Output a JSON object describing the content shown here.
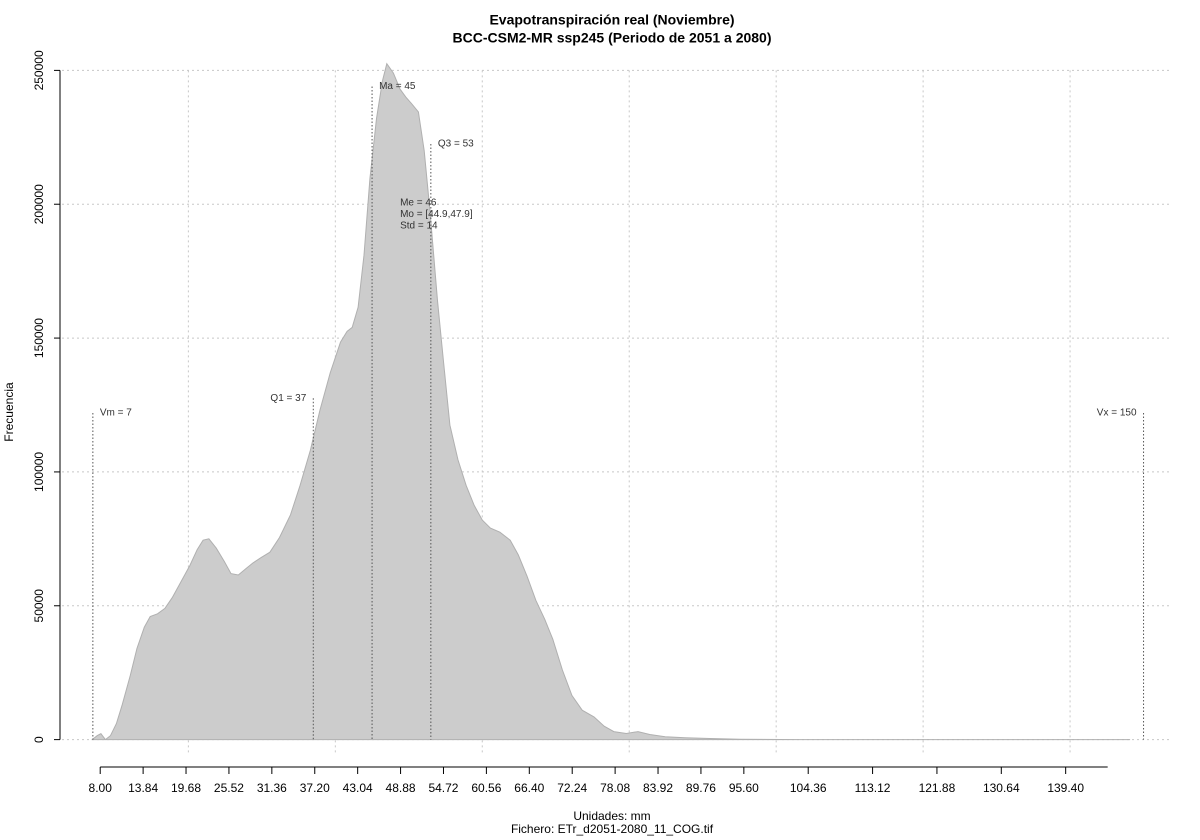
{
  "chart_data": {
    "type": "area",
    "title": "Evapotranspiración real (Noviembre)",
    "subtitle": "BCC-CSM2-MR ssp245 (Periodo de 2051 a 2080)",
    "xlabel": "Unidades: mm",
    "caption": "Fichero: ETr_d2051-2080_11_COG.tif",
    "ylabel": "Frecuencia",
    "color": "#cccccc",
    "x": [
      6.9,
      7.6,
      8.1,
      8.7,
      9.4,
      10.2,
      11,
      12.1,
      13,
      14,
      14.8,
      15.8,
      16.8,
      17.8,
      18.9,
      20.2,
      21.2,
      22,
      22.8,
      23.8,
      24.9,
      25.8,
      26.8,
      27.9,
      28.8,
      29.9,
      31.1,
      32.4,
      33.9,
      35.2,
      36.6,
      37.9,
      39.3,
      40.7,
      41.6,
      42.3,
      43.1,
      43.9,
      44.7,
      45.6,
      46.4,
      47,
      47.9,
      48.8,
      49.6,
      50.4,
      51.3,
      52.1,
      52.9,
      53.9,
      54.7,
      55.6,
      56.7,
      57.8,
      58.9,
      60,
      61.1,
      62.4,
      63.8,
      64.9,
      66.1,
      67.3,
      68.5,
      69.6,
      70.9,
      72.2,
      73.6,
      75.2,
      76.6,
      77.9,
      79.6,
      81.2,
      82.8,
      84.9,
      87.6,
      91,
      95.1,
      103.2,
      148.1
    ],
    "values": [
      0,
      1500,
      2200,
      0,
      1500,
      6000,
      13000,
      24000,
      34000,
      42000,
      46000,
      47000,
      49000,
      53000,
      58500,
      65000,
      71000,
      74500,
      75000,
      71500,
      66500,
      62000,
      61500,
      64000,
      66000,
      68000,
      70000,
      75500,
      84000,
      95000,
      108000,
      123000,
      137000,
      148500,
      152500,
      154000,
      161500,
      181000,
      209500,
      232000,
      246000,
      252500,
      249000,
      243000,
      240000,
      237500,
      234500,
      220000,
      197000,
      164000,
      142000,
      117500,
      104500,
      95000,
      87500,
      82000,
      79000,
      77500,
      74500,
      69000,
      61000,
      52000,
      45000,
      37500,
      26000,
      16500,
      11000,
      8500,
      5000,
      3000,
      2300,
      3000,
      1900,
      1100,
      700,
      400,
      100,
      0,
      0
    ],
    "xlim": [
      2.8,
      153.6
    ],
    "ylim": [
      -5000,
      255000
    ],
    "xticks": [
      {
        "value": 8,
        "label": "8.00"
      },
      {
        "value": 13.84,
        "label": "13.84"
      },
      {
        "value": 19.68,
        "label": "19.68"
      },
      {
        "value": 25.52,
        "label": "25.52"
      },
      {
        "value": 31.36,
        "label": "31.36"
      },
      {
        "value": 37.2,
        "label": "37.20"
      },
      {
        "value": 43.04,
        "label": "43.04"
      },
      {
        "value": 48.88,
        "label": "48.88"
      },
      {
        "value": 54.72,
        "label": "54.72"
      },
      {
        "value": 60.56,
        "label": "60.56"
      },
      {
        "value": 66.4,
        "label": "66.40"
      },
      {
        "value": 72.24,
        "label": "72.24"
      },
      {
        "value": 78.08,
        "label": "78.08"
      },
      {
        "value": 83.92,
        "label": "83.92"
      },
      {
        "value": 89.76,
        "label": "89.76"
      },
      {
        "value": 95.6,
        "label": "95.60"
      },
      {
        "value": 104.36,
        "label": "104.36"
      },
      {
        "value": 113.12,
        "label": "113.12"
      },
      {
        "value": 121.88,
        "label": "121.88"
      },
      {
        "value": 130.64,
        "label": "130.64"
      },
      {
        "value": 139.4,
        "label": "139.40"
      }
    ],
    "yticks": [
      0,
      50000,
      100000,
      150000,
      200000,
      250000
    ],
    "xgrid": [
      20,
      40,
      60,
      80,
      100,
      120,
      140
    ],
    "grid": true,
    "annotations": [
      {
        "label": "Vm = 7",
        "x": 7,
        "y": 122000
      },
      {
        "label": "Q1 = 37",
        "x": 37,
        "y": 127500
      },
      {
        "label": "Ma = 45",
        "x": 45,
        "y": 244000
      },
      {
        "label": "Q3 = 53",
        "x": 53,
        "y": 222500
      },
      {
        "label": "Vx = 150",
        "x": 150,
        "y": 122000
      }
    ],
    "notes": [
      "Me = 46",
      "Mo = [44.9,47.9]",
      "Std = 14"
    ]
  }
}
